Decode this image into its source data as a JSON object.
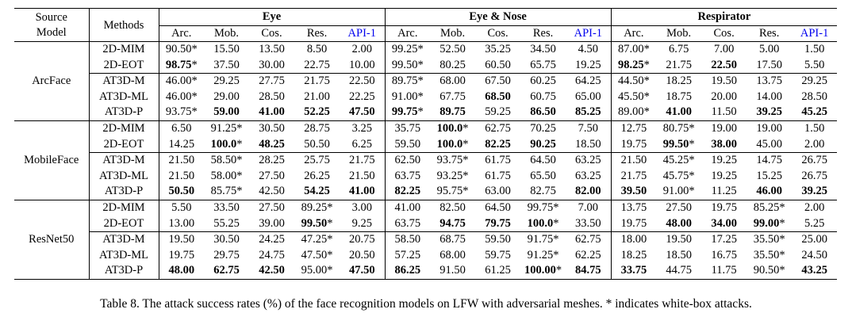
{
  "page": {
    "background": "#ffffff",
    "text_color": "#000000",
    "api_header_color": "#0000EE"
  },
  "table": {
    "header": {
      "source_model": [
        "Source",
        "Model"
      ],
      "methods": "Methods",
      "groups": [
        {
          "label": "Eye",
          "columns": [
            "Arc.",
            "Mob.",
            "Cos.",
            "Res.",
            "API-1"
          ]
        },
        {
          "label": "Eye & Nose",
          "columns": [
            "Arc.",
            "Mob.",
            "Cos.",
            "Res.",
            "API-1"
          ]
        },
        {
          "label": "Respirator",
          "columns": [
            "Arc.",
            "Mob.",
            "Cos.",
            "Res.",
            "API-1"
          ]
        }
      ]
    },
    "blocks": [
      {
        "model": "ArcFace",
        "rows": [
          {
            "method": "2D-MIM",
            "values": [
              "90.50*",
              "15.50",
              "13.50",
              "8.50",
              "2.00",
              "99.25*",
              "52.50",
              "35.25",
              "34.50",
              "4.50",
              "87.00*",
              "6.75",
              "7.00",
              "5.00",
              "1.50"
            ],
            "bold": [
              0,
              0,
              0,
              0,
              0,
              0,
              0,
              0,
              0,
              0,
              0,
              0,
              0,
              0,
              0
            ]
          },
          {
            "method": "2D-EOT",
            "values": [
              "98.75*",
              "37.50",
              "30.00",
              "22.75",
              "10.00",
              "99.50*",
              "80.25",
              "60.50",
              "65.75",
              "19.25",
              "98.25*",
              "21.75",
              "22.50",
              "17.50",
              "5.50"
            ],
            "bold": [
              1,
              0,
              0,
              0,
              0,
              0,
              0,
              0,
              0,
              0,
              1,
              0,
              1,
              0,
              0
            ]
          },
          {
            "method": "AT3D-M",
            "values": [
              "46.00*",
              "29.25",
              "27.75",
              "21.75",
              "22.50",
              "89.75*",
              "68.00",
              "67.50",
              "60.25",
              "64.25",
              "44.50*",
              "18.25",
              "19.50",
              "13.75",
              "29.25"
            ],
            "bold": [
              0,
              0,
              0,
              0,
              0,
              0,
              0,
              0,
              0,
              0,
              0,
              0,
              0,
              0,
              0
            ]
          },
          {
            "method": "AT3D-ML",
            "values": [
              "46.00*",
              "29.00",
              "28.50",
              "21.00",
              "22.25",
              "91.00*",
              "67.75",
              "68.50",
              "60.75",
              "65.00",
              "45.50*",
              "18.75",
              "20.00",
              "14.00",
              "28.50"
            ],
            "bold": [
              0,
              0,
              0,
              0,
              0,
              0,
              0,
              1,
              0,
              0,
              0,
              0,
              0,
              0,
              0
            ]
          },
          {
            "method": "AT3D-P",
            "values": [
              "93.75*",
              "59.00",
              "41.00",
              "52.25",
              "47.50",
              "99.75*",
              "89.75",
              "59.25",
              "86.50",
              "85.25",
              "89.00*",
              "41.00",
              "11.50",
              "39.25",
              "45.25"
            ],
            "bold": [
              0,
              1,
              1,
              1,
              1,
              1,
              1,
              0,
              1,
              1,
              0,
              1,
              0,
              1,
              1
            ]
          }
        ]
      },
      {
        "model": "MobileFace",
        "rows": [
          {
            "method": "2D-MIM",
            "values": [
              "6.50",
              "91.25*",
              "30.50",
              "28.75",
              "3.25",
              "35.75",
              "100.0*",
              "62.75",
              "70.25",
              "7.50",
              "12.75",
              "80.75*",
              "19.00",
              "19.00",
              "1.50"
            ],
            "bold": [
              0,
              0,
              0,
              0,
              0,
              0,
              1,
              0,
              0,
              0,
              0,
              0,
              0,
              0,
              0
            ]
          },
          {
            "method": "2D-EOT",
            "values": [
              "14.25",
              "100.0*",
              "48.25",
              "50.50",
              "6.25",
              "59.50",
              "100.0*",
              "82.25",
              "90.25",
              "18.50",
              "19.75",
              "99.50*",
              "38.00",
              "45.00",
              "2.00"
            ],
            "bold": [
              0,
              1,
              1,
              0,
              0,
              0,
              1,
              1,
              1,
              0,
              0,
              1,
              1,
              0,
              0
            ]
          },
          {
            "method": "AT3D-M",
            "values": [
              "21.50",
              "58.50*",
              "28.25",
              "25.75",
              "21.75",
              "62.50",
              "93.75*",
              "61.75",
              "64.50",
              "63.25",
              "21.50",
              "45.25*",
              "19.25",
              "14.75",
              "26.75"
            ],
            "bold": [
              0,
              0,
              0,
              0,
              0,
              0,
              0,
              0,
              0,
              0,
              0,
              0,
              0,
              0,
              0
            ]
          },
          {
            "method": "AT3D-ML",
            "values": [
              "21.50",
              "58.00*",
              "27.50",
              "26.25",
              "21.50",
              "63.75",
              "93.25*",
              "61.75",
              "65.50",
              "63.25",
              "21.75",
              "45.75*",
              "19.25",
              "15.25",
              "26.75"
            ],
            "bold": [
              0,
              0,
              0,
              0,
              0,
              0,
              0,
              0,
              0,
              0,
              0,
              0,
              0,
              0,
              0
            ]
          },
          {
            "method": "AT3D-P",
            "values": [
              "50.50",
              "85.75*",
              "42.50",
              "54.25",
              "41.00",
              "82.25",
              "95.75*",
              "63.00",
              "82.75",
              "82.00",
              "39.50",
              "91.00*",
              "11.25",
              "46.00",
              "39.25"
            ],
            "bold": [
              1,
              0,
              0,
              1,
              1,
              1,
              0,
              0,
              0,
              1,
              1,
              0,
              0,
              1,
              1
            ]
          }
        ]
      },
      {
        "model": "ResNet50",
        "rows": [
          {
            "method": "2D-MIM",
            "values": [
              "5.50",
              "33.50",
              "27.50",
              "89.25*",
              "3.00",
              "41.00",
              "82.50",
              "64.50",
              "99.75*",
              "7.00",
              "13.75",
              "27.50",
              "19.75",
              "85.25*",
              "2.00"
            ],
            "bold": [
              0,
              0,
              0,
              0,
              0,
              0,
              0,
              0,
              0,
              0,
              0,
              0,
              0,
              0,
              0
            ]
          },
          {
            "method": "2D-EOT",
            "values": [
              "13.00",
              "55.25",
              "39.00",
              "99.50*",
              "9.25",
              "63.75",
              "94.75",
              "79.75",
              "100.0*",
              "33.50",
              "19.75",
              "48.00",
              "34.00",
              "99.00*",
              "5.25"
            ],
            "bold": [
              0,
              0,
              0,
              1,
              0,
              0,
              1,
              1,
              1,
              0,
              0,
              1,
              1,
              1,
              0
            ]
          },
          {
            "method": "AT3D-M",
            "values": [
              "19.50",
              "30.50",
              "24.25",
              "47.25*",
              "20.75",
              "58.50",
              "68.75",
              "59.50",
              "91.75*",
              "62.75",
              "18.00",
              "19.50",
              "17.25",
              "35.50*",
              "25.00"
            ],
            "bold": [
              0,
              0,
              0,
              0,
              0,
              0,
              0,
              0,
              0,
              0,
              0,
              0,
              0,
              0,
              0
            ]
          },
          {
            "method": "AT3D-ML",
            "values": [
              "19.75",
              "29.75",
              "24.75",
              "47.50*",
              "20.50",
              "57.25",
              "68.00",
              "59.75",
              "91.25*",
              "62.25",
              "18.25",
              "18.50",
              "16.75",
              "35.50*",
              "24.50"
            ],
            "bold": [
              0,
              0,
              0,
              0,
              0,
              0,
              0,
              0,
              0,
              0,
              0,
              0,
              0,
              0,
              0
            ]
          },
          {
            "method": "AT3D-P",
            "values": [
              "48.00",
              "62.75",
              "42.50",
              "95.00*",
              "47.50",
              "86.25",
              "91.50",
              "61.25",
              "100.00*",
              "84.75",
              "33.75",
              "44.75",
              "11.75",
              "90.50*",
              "43.25"
            ],
            "bold": [
              1,
              1,
              1,
              0,
              1,
              1,
              0,
              0,
              1,
              1,
              1,
              0,
              0,
              0,
              1
            ]
          }
        ]
      }
    ]
  },
  "caption": "Table 8. The attack success rates (%) of the face recognition models on LFW with adversarial meshes. * indicates white-box attacks."
}
